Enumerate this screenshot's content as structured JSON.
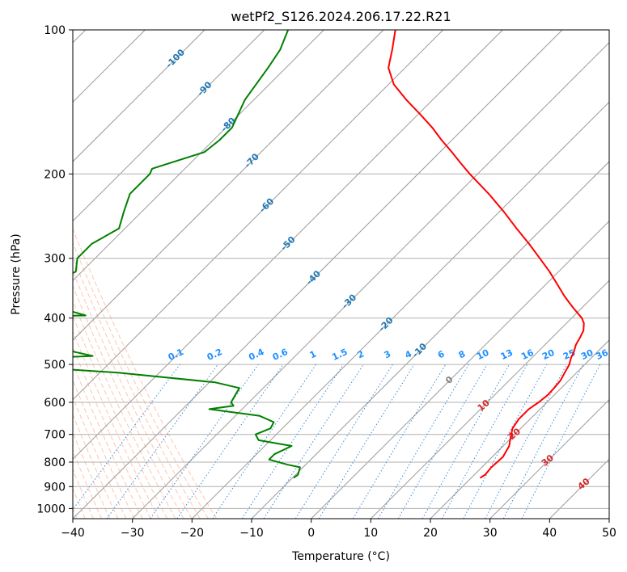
{
  "chart_data": {
    "type": "line",
    "chart_kind": "skew-T log-p diagram",
    "title": "wetPf2_S126.2024.206.17.22.R21",
    "xlabel": "Temperature (°C)",
    "ylabel": "Pressure (hPa)",
    "xlim": [
      -40,
      50
    ],
    "ylim": [
      1050,
      100
    ],
    "y_scale": "log",
    "x_ticks": [
      "−40",
      "−30",
      "−20",
      "−10",
      "0",
      "10",
      "20",
      "30",
      "40",
      "50"
    ],
    "x_tick_values": [
      -40,
      -30,
      -20,
      -10,
      0,
      10,
      20,
      30,
      40,
      50
    ],
    "y_ticks": [
      "100",
      "200",
      "300",
      "400",
      "500",
      "600",
      "700",
      "800",
      "900",
      "1000"
    ],
    "y_tick_values": [
      100,
      200,
      300,
      400,
      500,
      600,
      700,
      800,
      900,
      1000
    ],
    "grid": true,
    "isotherm_labels": [
      {
        "text": "-100",
        "p": 115
      },
      {
        "text": "-90",
        "p": 133
      },
      {
        "text": "-80",
        "p": 158
      },
      {
        "text": "-70",
        "p": 188
      },
      {
        "text": "-60",
        "p": 233
      },
      {
        "text": "-50",
        "p": 280
      },
      {
        "text": "-40",
        "p": 330
      },
      {
        "text": "-30",
        "p": 370
      },
      {
        "text": "-20",
        "p": 413
      },
      {
        "text": "-10",
        "p": 468
      }
    ],
    "mixing_ratio_labels": [
      "0.1",
      "0.2",
      "0.4",
      "0.6",
      "1",
      "1.5",
      "2",
      "3",
      "4",
      "6",
      "8",
      "10",
      "13",
      "16",
      "20",
      "25",
      "30",
      "36"
    ],
    "mixing_ratio_label_x": [
      -22.5,
      -16,
      -9,
      -5,
      0.5,
      5,
      8.5,
      13,
      16.5,
      22,
      25.5,
      29,
      33,
      36.5,
      40,
      43.5,
      46.5,
      49
    ],
    "dry_adiabat_labels": [
      {
        "text": "0",
        "p": 540
      },
      {
        "text": "10",
        "p": 610
      },
      {
        "text": "20",
        "p": 700
      },
      {
        "text": "30",
        "p": 795
      },
      {
        "text": "40",
        "p": 890
      }
    ],
    "series": [
      {
        "color": "#ff0000",
        "points": [
          [
            863,
            21.5
          ],
          [
            850,
            21.8
          ],
          [
            820,
            21.6
          ],
          [
            780,
            21.8
          ],
          [
            760,
            21.4
          ],
          [
            740,
            21.0
          ],
          [
            720,
            20.2
          ],
          [
            700,
            19.4
          ],
          [
            680,
            18.6
          ],
          [
            650,
            18.1
          ],
          [
            620,
            18.1
          ],
          [
            600,
            18.6
          ],
          [
            580,
            18.9
          ],
          [
            560,
            18.8
          ],
          [
            540,
            18.6
          ],
          [
            520,
            18.0
          ],
          [
            500,
            17.4
          ],
          [
            485,
            16.6
          ],
          [
            470,
            16.0
          ],
          [
            455,
            15.2
          ],
          [
            440,
            14.7
          ],
          [
            425,
            14.1
          ],
          [
            410,
            12.9
          ],
          [
            400,
            11.7
          ],
          [
            380,
            8.4
          ],
          [
            360,
            5.1
          ],
          [
            340,
            1.9
          ],
          [
            320,
            -1.5
          ],
          [
            300,
            -5.4
          ],
          [
            280,
            -9.6
          ],
          [
            260,
            -14.3
          ],
          [
            240,
            -19.2
          ],
          [
            220,
            -24.8
          ],
          [
            200,
            -31.3
          ],
          [
            190,
            -34.6
          ],
          [
            180,
            -38.0
          ],
          [
            170,
            -41.7
          ],
          [
            160,
            -45.4
          ],
          [
            150,
            -49.7
          ],
          [
            140,
            -54.4
          ],
          [
            130,
            -59.1
          ],
          [
            120,
            -62.8
          ],
          [
            110,
            -65.2
          ],
          [
            100,
            -68.0
          ]
        ]
      },
      {
        "color": "#008000",
        "points": [
          [
            863,
            -9.8
          ],
          [
            850,
            -9.6
          ],
          [
            820,
            -10.5
          ],
          [
            810,
            -13.0
          ],
          [
            790,
            -17.0
          ],
          [
            770,
            -17.0
          ],
          [
            740,
            -15.5
          ],
          [
            720,
            -22.0
          ],
          [
            700,
            -23.5
          ],
          [
            680,
            -22.0
          ],
          [
            660,
            -22.5
          ],
          [
            640,
            -26.0
          ],
          [
            620,
            -35.5
          ],
          [
            610,
            -32.0
          ],
          [
            600,
            -33.0
          ],
          [
            580,
            -33.5
          ],
          [
            560,
            -34.0
          ],
          [
            545,
            -39.0
          ],
          [
            520,
            -57.0
          ],
          [
            500,
            -80.0
          ],
          [
            490,
            -80.0
          ],
          [
            480,
            -64.0
          ],
          [
            470,
            -68.0
          ],
          [
            460,
            -90.0
          ],
          [
            450,
            -105.0
          ],
          [
            400,
            -101.0
          ],
          [
            395,
            -72.0
          ],
          [
            380,
            -78.0
          ],
          [
            360,
            -83.0
          ],
          [
            340,
            -84.0
          ],
          [
            320,
            -81.0
          ],
          [
            300,
            -83.0
          ],
          [
            280,
            -83.0
          ],
          [
            260,
            -81.0
          ],
          [
            240,
            -83.0
          ],
          [
            220,
            -85.0
          ],
          [
            200,
            -85.0
          ],
          [
            195,
            -85.5
          ],
          [
            180,
            -79.5
          ],
          [
            170,
            -79.0
          ],
          [
            160,
            -79.0
          ],
          [
            140,
            -81.5
          ],
          [
            120,
            -83.0
          ],
          [
            110,
            -84.0
          ],
          [
            100,
            -86.0
          ]
        ]
      }
    ]
  }
}
